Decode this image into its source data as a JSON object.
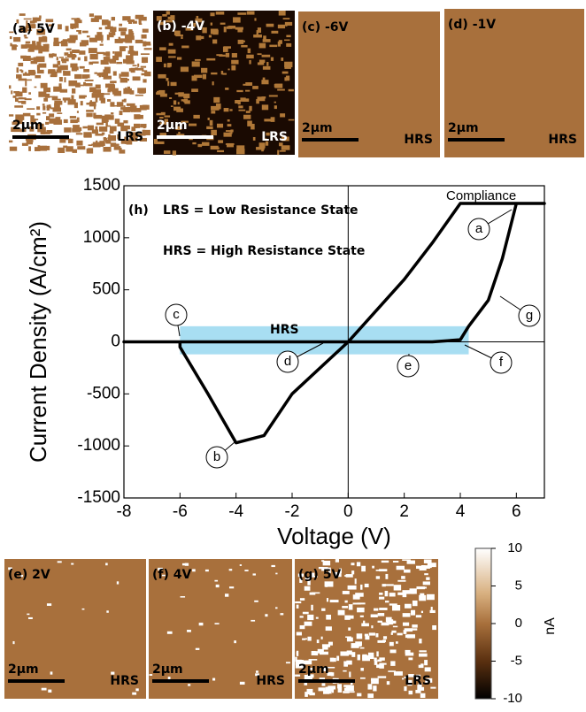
{
  "panels_top": [
    {
      "label": "(a) 5V",
      "scale": "2μm",
      "state": "LRS"
    },
    {
      "label": "(b) -4V",
      "scale": "2μm",
      "state": "LRS"
    },
    {
      "label": "(c) -6V",
      "scale": "2μm",
      "state": "HRS"
    },
    {
      "label": "(d) -1V",
      "scale": "2μm",
      "state": "HRS"
    }
  ],
  "panels_bottom": [
    {
      "label": "(e) 2V",
      "scale": "2μm",
      "state": "HRS"
    },
    {
      "label": "(f) 4V",
      "scale": "2μm",
      "state": "HRS"
    },
    {
      "label": "(g) 5V",
      "scale": "2μm",
      "state": "LRS"
    }
  ],
  "colorbar": {
    "label": "nA",
    "lim": [
      -10,
      10
    ],
    "ticks": [
      10,
      5,
      0,
      -5,
      -10
    ]
  },
  "chart_data": {
    "type": "line",
    "panel_label": "(h)",
    "annotations": [
      "LRS = Low Resistance State",
      "HRS = High Resistance State",
      "Compliance",
      "HRS"
    ],
    "callouts": [
      "a",
      "b",
      "c",
      "d",
      "e",
      "f",
      "g"
    ],
    "x_label": "Voltage (V)",
    "y_label": "Current Density (A/cm²)",
    "x": [
      0,
      3,
      4,
      4.3,
      5,
      5.5,
      6,
      7,
      6,
      4,
      3,
      2,
      0,
      -2,
      -3,
      -4,
      -5,
      -6,
      -6,
      -8,
      0
    ],
    "values": [
      0,
      0,
      20,
      150,
      400,
      800,
      1330,
      1330,
      1330,
      1330,
      950,
      600,
      0,
      -500,
      -900,
      -970,
      -500,
      -50,
      0,
      0,
      0
    ],
    "color": "#000000",
    "highlight": {
      "x": [
        -6,
        4.3
      ],
      "y": [
        -120,
        150
      ],
      "color": "#a8def2"
    },
    "xlim": [
      -8,
      7
    ],
    "xticks": [
      -8,
      -6,
      -4,
      -2,
      0,
      2,
      4,
      6
    ],
    "ylim": [
      -1500,
      1500
    ],
    "yticks": [
      -1500,
      -1000,
      -500,
      0,
      500,
      1000,
      1500
    ]
  }
}
